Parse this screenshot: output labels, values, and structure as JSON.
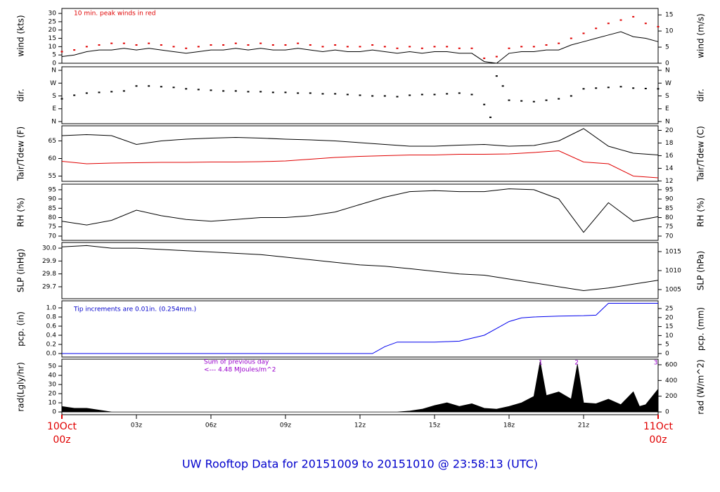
{
  "chart_data": [
    {
      "type": "line",
      "ylabel": "wind (kts)",
      "y2label": "wind (m/s)",
      "xlim": [
        0,
        24
      ],
      "ylim": [
        0,
        33
      ],
      "yticks": [
        0,
        5,
        10,
        15,
        20,
        25,
        30
      ],
      "y2lim": [
        0,
        17
      ],
      "y2ticks": [
        0,
        5,
        10,
        15
      ],
      "annotations": [
        "10 min. peak winds in red"
      ],
      "annotation_color": "#e00000",
      "x": [
        0,
        0.5,
        1,
        1.5,
        2,
        2.5,
        3,
        3.5,
        4,
        4.5,
        5,
        5.5,
        6,
        6.5,
        7,
        7.5,
        8,
        8.5,
        9,
        9.5,
        10,
        10.5,
        11,
        11.5,
        12,
        12.5,
        13,
        13.5,
        14,
        14.5,
        15,
        15.5,
        16,
        16.5,
        17,
        17.5,
        18,
        18.5,
        19,
        19.5,
        20,
        20.5,
        21,
        21.5,
        22,
        22.5,
        23,
        23.5,
        24
      ],
      "series": [
        {
          "mode": "line",
          "color": "#000000",
          "values": [
            4,
            5,
            7,
            8,
            8,
            9,
            8,
            9,
            8,
            7,
            6,
            7,
            8,
            8,
            9,
            8,
            9,
            8,
            8,
            9,
            8,
            7,
            8,
            7,
            7,
            8,
            7,
            6,
            7,
            6,
            7,
            7,
            6,
            6,
            1,
            0,
            6,
            7,
            7,
            8,
            8,
            11,
            13,
            15,
            17,
            19,
            16,
            15,
            13
          ]
        },
        {
          "mode": "points",
          "color": "#e00000",
          "values": [
            7,
            8,
            10,
            11,
            12,
            12,
            11,
            12,
            11,
            10,
            9,
            10,
            11,
            11,
            12,
            11,
            12,
            11,
            11,
            12,
            11,
            10,
            11,
            10,
            10,
            11,
            10,
            9,
            10,
            9,
            10,
            10,
            9,
            9,
            3,
            4,
            9,
            10,
            10,
            11,
            12,
            15,
            18,
            21,
            24,
            26,
            28,
            24,
            22
          ]
        }
      ]
    },
    {
      "type": "scatter",
      "ylabel": "dir.",
      "y2label": "dir.",
      "xlim": [
        0,
        24
      ],
      "ylim": [
        -15,
        385
      ],
      "yticks": [
        {
          "value": 0,
          "label": "N"
        },
        {
          "value": 90,
          "label": "E"
        },
        {
          "value": 180,
          "label": "S"
        },
        {
          "value": 270,
          "label": "W"
        },
        {
          "value": 360,
          "label": "N"
        }
      ],
      "y2lim": [
        -15,
        385
      ],
      "y2ticks": [
        {
          "value": 0,
          "label": "N"
        },
        {
          "value": 90,
          "label": "E"
        },
        {
          "value": 180,
          "label": "S"
        },
        {
          "value": 270,
          "label": "W"
        },
        {
          "value": 360,
          "label": "N"
        }
      ],
      "x": [
        0,
        0.5,
        1,
        1.5,
        2,
        2.5,
        3,
        3.5,
        4,
        4.5,
        5,
        5.5,
        6,
        6.5,
        7,
        7.5,
        8,
        8.5,
        9,
        9.5,
        10,
        10.5,
        11,
        11.5,
        12,
        12.5,
        13,
        13.5,
        14,
        14.5,
        15,
        15.5,
        16,
        16.5,
        17,
        17.25,
        17.5,
        17.75,
        18,
        18.5,
        19,
        19.5,
        20,
        20.5,
        21,
        21.5,
        22,
        22.5,
        23,
        23.5,
        24
      ],
      "series": [
        {
          "mode": "points",
          "color": "#000000",
          "values": [
            160,
            185,
            200,
            205,
            210,
            215,
            250,
            250,
            245,
            240,
            230,
            225,
            220,
            215,
            215,
            210,
            210,
            205,
            205,
            200,
            200,
            195,
            195,
            190,
            185,
            180,
            180,
            175,
            185,
            190,
            190,
            195,
            200,
            190,
            120,
            30,
            320,
            250,
            150,
            145,
            140,
            150,
            160,
            180,
            230,
            235,
            240,
            245,
            235,
            232,
            230
          ]
        }
      ]
    },
    {
      "type": "line",
      "ylabel": "Tair/Tdew (F)",
      "y2label": "Tair/Tdew (C)",
      "xlim": [
        0,
        24
      ],
      "ylim": [
        53.5,
        69.3
      ],
      "yticks": [
        55,
        60,
        65
      ],
      "y2lim": [
        11.94,
        20.72
      ],
      "y2ticks": [
        12,
        14,
        16,
        18,
        20
      ],
      "x": [
        0,
        1,
        2,
        3,
        4,
        5,
        6,
        7,
        8,
        9,
        10,
        11,
        12,
        13,
        14,
        15,
        16,
        17,
        18,
        19,
        20,
        21,
        22,
        23,
        24
      ],
      "series": [
        {
          "mode": "line",
          "color": "#000000",
          "values": [
            66.5,
            66.8,
            66.5,
            64,
            65,
            65.5,
            65.8,
            66,
            65.8,
            65.5,
            65.3,
            65,
            64.5,
            64,
            63.5,
            63.5,
            63.8,
            64,
            63.5,
            63.7,
            65,
            68.5,
            63.5,
            61.5,
            61
          ]
        },
        {
          "mode": "line",
          "color": "#e00000",
          "values": [
            59.2,
            58.5,
            58.7,
            58.8,
            58.9,
            58.9,
            59,
            59,
            59.1,
            59.3,
            59.8,
            60.3,
            60.6,
            60.8,
            61,
            61,
            61.2,
            61.2,
            61.3,
            61.7,
            62.2,
            59,
            58.5,
            55,
            54.5
          ]
        }
      ]
    },
    {
      "type": "line",
      "ylabel": "RH (%)",
      "y2label": "RH (%)",
      "xlim": [
        0,
        24
      ],
      "ylim": [
        67.7,
        98
      ],
      "yticks": [
        70,
        75,
        80,
        85,
        90,
        95
      ],
      "y2lim": [
        67.7,
        98
      ],
      "y2ticks": [
        70,
        75,
        80,
        85,
        90,
        95
      ],
      "x": [
        0,
        1,
        2,
        3,
        4,
        5,
        6,
        7,
        8,
        9,
        10,
        11,
        12,
        13,
        14,
        15,
        16,
        17,
        18,
        19,
        20,
        21,
        22,
        23,
        24
      ],
      "series": [
        {
          "mode": "line",
          "color": "#000000",
          "values": [
            78,
            76,
            78.5,
            84,
            81,
            79,
            78,
            79,
            80,
            80,
            81,
            83,
            87,
            91,
            94,
            94.5,
            94,
            94,
            95.5,
            95,
            90,
            72,
            88,
            78,
            80.5
          ]
        }
      ]
    },
    {
      "type": "line",
      "ylabel": "SLP (inHg)",
      "y2label": "SLP (hPa)",
      "xlim": [
        0,
        24
      ],
      "ylim": [
        29.607,
        30.044
      ],
      "yticks": [
        29.7,
        29.8,
        29.9,
        {
          "value": 30,
          "label": "30.0"
        }
      ],
      "y2lim": [
        1002.6,
        1017.4
      ],
      "y2ticks": [
        1005,
        1010,
        1015
      ],
      "x": [
        0,
        1,
        2,
        3,
        4,
        5,
        6,
        7,
        8,
        9,
        10,
        11,
        12,
        13,
        14,
        15,
        16,
        17,
        18,
        19,
        20,
        21,
        22,
        23,
        24
      ],
      "series": [
        {
          "mode": "line",
          "color": "#000000",
          "values": [
            30.01,
            30.02,
            30.0,
            30.0,
            29.99,
            29.98,
            29.97,
            29.96,
            29.95,
            29.93,
            29.91,
            29.89,
            29.87,
            29.86,
            29.84,
            29.82,
            29.8,
            29.79,
            29.76,
            29.73,
            29.7,
            29.67,
            29.69,
            29.72,
            29.75
          ]
        }
      ]
    },
    {
      "type": "line",
      "ylabel": "pcp. (in)",
      "y2label": "pcp. (mm)",
      "xlim": [
        0,
        24
      ],
      "ylim": [
        -0.077,
        1.154
      ],
      "yticks": [
        {
          "value": 0,
          "label": "0.0"
        },
        0.2,
        0.4,
        0.6,
        0.8,
        {
          "value": 1,
          "label": "1.0"
        }
      ],
      "y2lim": [
        -1.95,
        29.3
      ],
      "y2ticks": [
        0,
        5,
        10,
        15,
        20,
        25
      ],
      "annotations": [
        "Tip increments are 0.01in. (0.254mm.)"
      ],
      "annotation_color": "#0000cc",
      "x": [
        0,
        1,
        2,
        3,
        4,
        5,
        6,
        7,
        8,
        9,
        10,
        11,
        12,
        12.5,
        13,
        13.5,
        14,
        15,
        16,
        17,
        17.5,
        18,
        18.5,
        19,
        20,
        21,
        21.5,
        22,
        23,
        24
      ],
      "series": [
        {
          "mode": "line",
          "color": "#0000ee",
          "values": [
            0,
            0,
            0,
            0,
            0,
            0,
            0,
            0,
            0,
            0,
            0,
            0,
            0,
            0,
            0.15,
            0.25,
            0.25,
            0.25,
            0.27,
            0.4,
            0.55,
            0.7,
            0.78,
            0.8,
            0.82,
            0.83,
            0.84,
            1.1,
            1.1,
            1.1
          ]
        }
      ]
    },
    {
      "type": "area",
      "ylabel": "rad(Lgly/hr)",
      "y2label": "rad (W/m^2)",
      "xlim": [
        0,
        24
      ],
      "ylim": [
        -3,
        57.7
      ],
      "yticks": [
        0,
        10,
        20,
        30,
        40,
        50
      ],
      "y2lim": [
        -35,
        671
      ],
      "y2ticks": [
        0,
        200,
        400,
        600
      ],
      "annotations": [
        "Sum of previous day",
        "<--- 4.48 MJoules/m^2"
      ],
      "annotation_color": "#9900cc",
      "peak_labels": [
        {
          "value": 19.27,
          "label": "1"
        },
        {
          "value": 20.72,
          "label": "2"
        },
        {
          "value": 23.9,
          "label": "3"
        }
      ],
      "x": [
        0,
        0.5,
        1,
        1.5,
        2,
        2.5,
        13.5,
        14,
        14.5,
        15,
        15.5,
        16,
        16.5,
        17,
        17.5,
        18,
        18.5,
        19,
        19.25,
        19.5,
        20,
        20.5,
        20.75,
        21,
        21.5,
        22,
        22.5,
        23,
        23.25,
        23.5,
        24
      ],
      "series": [
        {
          "mode": "area",
          "color": "#000000",
          "values": [
            6,
            4,
            4,
            2,
            0,
            0,
            0,
            1,
            3,
            7,
            10,
            6,
            9,
            4,
            3,
            6,
            10,
            17,
            55,
            18,
            22,
            14,
            52,
            10,
            9,
            14,
            8,
            22,
            6,
            8,
            25
          ]
        }
      ],
      "xticks": [
        {
          "value": 0,
          "label": "10Oct"
        },
        {
          "value": 3,
          "label": "03z"
        },
        {
          "value": 6,
          "label": "06z"
        },
        {
          "value": 9,
          "label": "09z"
        },
        {
          "value": 12,
          "label": "12z"
        },
        {
          "value": 15,
          "label": "15z"
        },
        {
          "value": 18,
          "label": "18z"
        },
        {
          "value": 21,
          "label": "21z"
        },
        {
          "value": 24,
          "label": "11Oct"
        }
      ],
      "xticks_hours": [
        {
          "value": 0,
          "label": "00z"
        },
        {
          "value": 24,
          "label": "00z"
        }
      ],
      "xtick_edge_color": "#e00000"
    }
  ],
  "title": "UW Rooftop Data for 20151009  to  20151010 @ 23:58:13  (UTC)",
  "title_color": "#0000cc"
}
